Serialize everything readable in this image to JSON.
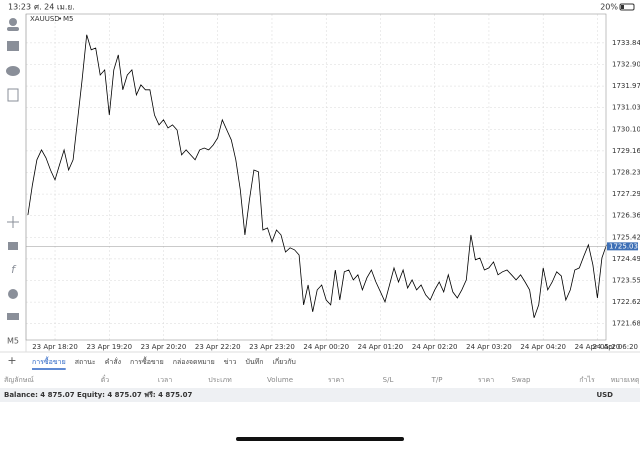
{
  "status_bar": {
    "time": "13:23",
    "date": "ศ. 24 เม.ย.",
    "battery": "20%"
  },
  "chart_data": {
    "type": "line",
    "title": "XAUUSD",
    "timeframe": "M5",
    "color": "#000000",
    "grid": true,
    "current_price": 1725.033,
    "ylim": [
      1720.98,
      1735.09
    ],
    "yticks": [
      {
        "value": 1721.685,
        "label": "1721.685"
      },
      {
        "value": 1722.62,
        "label": "1722.620"
      },
      {
        "value": 1723.555,
        "label": "1723.555"
      },
      {
        "value": 1724.49,
        "label": "1724.490"
      },
      {
        "value": 1725.425,
        "label": "1725.425"
      },
      {
        "value": 1726.36,
        "label": "1726.360"
      },
      {
        "value": 1727.295,
        "label": "1727.295"
      },
      {
        "value": 1728.23,
        "label": "1728.230"
      },
      {
        "value": 1729.165,
        "label": "1729.165"
      },
      {
        "value": 1730.1,
        "label": "1730.100"
      },
      {
        "value": 1731.035,
        "label": "1731.035"
      },
      {
        "value": 1731.97,
        "label": "1731.970"
      },
      {
        "value": 1732.905,
        "label": "1732.905"
      },
      {
        "value": 1733.84,
        "label": "1733.840"
      }
    ],
    "categories": [
      null,
      null,
      null,
      null,
      null,
      null,
      "23 Apr 18:20",
      null,
      null,
      null,
      null,
      null,
      null,
      null,
      null,
      null,
      null,
      null,
      "23 Apr 19:20",
      null,
      null,
      null,
      null,
      null,
      null,
      null,
      null,
      null,
      null,
      null,
      "23 Apr 20:20",
      null,
      null,
      null,
      null,
      null,
      null,
      null,
      null,
      null,
      null,
      null,
      "23 Apr 22:20",
      null,
      null,
      null,
      null,
      null,
      null,
      null,
      null,
      null,
      null,
      null,
      "23 Apr 23:20",
      null,
      null,
      null,
      null,
      null,
      null,
      null,
      null,
      null,
      null,
      null,
      "24 Apr 00:20",
      null,
      null,
      null,
      null,
      null,
      null,
      null,
      null,
      null,
      null,
      null,
      "24 Apr 01:20",
      null,
      null,
      null,
      null,
      null,
      null,
      null,
      null,
      null,
      null,
      null,
      "24 Apr 02:20",
      null,
      null,
      null,
      null,
      null,
      null,
      null,
      null,
      null,
      null,
      null,
      "24 Apr 03:20",
      null,
      null,
      null,
      null,
      null,
      null,
      null,
      null,
      null,
      null,
      null,
      "24 Apr 04:20",
      null,
      null,
      null,
      null,
      null,
      null,
      null,
      null,
      null,
      null,
      null,
      "24 Apr 05:20",
      null,
      null,
      null,
      null,
      null,
      null,
      null,
      null,
      null,
      null,
      null,
      "24 Apr 06:20"
    ],
    "values": [
      1726.39,
      1727.69,
      1728.78,
      1729.21,
      1728.86,
      1728.34,
      1727.91,
      1728.56,
      1729.21,
      1728.34,
      1728.78,
      1730.51,
      1732.24,
      1734.19,
      1733.54,
      1733.62,
      1732.45,
      1732.67,
      1730.72,
      1732.67,
      1733.32,
      1731.81,
      1732.45,
      1732.67,
      1731.59,
      1732.02,
      1731.81,
      1731.81,
      1730.72,
      1730.29,
      1730.51,
      1730.16,
      1730.29,
      1730.07,
      1728.99,
      1729.21,
      1728.99,
      1728.78,
      1729.21,
      1729.29,
      1729.21,
      1729.42,
      1729.73,
      1730.51,
      1730.07,
      1729.64,
      1728.78,
      1727.48,
      1725.53,
      1727.04,
      1728.34,
      1728.26,
      1725.74,
      1725.83,
      1725.23,
      1725.74,
      1725.53,
      1724.79,
      1724.97,
      1724.88,
      1724.66,
      1722.5,
      1723.36,
      1722.2,
      1723.15,
      1723.36,
      1722.71,
      1722.5,
      1724.01,
      1722.71,
      1723.93,
      1724.01,
      1723.58,
      1723.8,
      1723.15,
      1723.67,
      1724.01,
      1723.49,
      1723.06,
      1722.63,
      1723.36,
      1724.1,
      1723.49,
      1724.01,
      1723.23,
      1723.58,
      1723.15,
      1723.36,
      1722.93,
      1722.71,
      1723.15,
      1723.49,
      1723.06,
      1723.8,
      1723.06,
      1722.8,
      1723.15,
      1723.58,
      1725.53,
      1724.45,
      1724.53,
      1724.01,
      1724.1,
      1724.36,
      1723.8,
      1723.93,
      1724.01,
      1723.8,
      1723.58,
      1723.8,
      1723.49,
      1723.15,
      1721.94,
      1722.5,
      1724.1,
      1723.15,
      1723.49,
      1723.93,
      1723.75,
      1722.71,
      1723.15,
      1724.01,
      1724.1,
      1724.62,
      1725.1,
      1724.23,
      1722.8,
      1724.53,
      1725.1,
      null,
      null,
      null,
      null,
      null,
      null,
      null,
      null,
      null,
      null
    ]
  },
  "toolbar": {
    "timeframe_button": "M5"
  },
  "tabs": [
    "การซื้อขาย",
    "สถานะ",
    "คำสั่ง",
    "การซื้อขาย",
    "กล่องจดหมาย",
    "ข่าว",
    "บันทึก",
    "เกี่ยวกับ"
  ],
  "table": {
    "header": [
      "สัญลักษณ์",
      "ตั๋ว",
      "เวลา",
      "ประเภท",
      "Volume",
      "ราคา",
      "S/L",
      "T/P",
      "ราคา",
      "Swap",
      "กำไร",
      "หมายเหตุ"
    ]
  },
  "account": {
    "summary": "Balance: 4 875.07 Equity: 4 875.07 ฟรี: 4 875.07",
    "currency": "USD"
  }
}
